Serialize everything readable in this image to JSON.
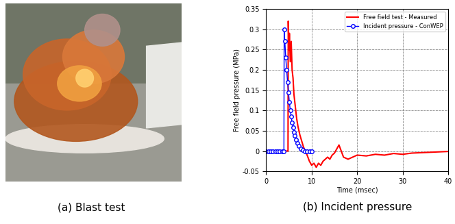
{
  "chart_data": {
    "type": "line",
    "xlabel": "Time (msec)",
    "ylabel": "Free field pressure (MPa)",
    "xlim": [
      0,
      40
    ],
    "xticks": [
      0,
      10,
      20,
      30,
      40
    ],
    "ylim": [
      -0.05,
      0.35
    ],
    "yticks": [
      -0.05,
      0,
      0.05,
      0.1,
      0.15,
      0.2,
      0.25,
      0.3,
      0.35
    ],
    "grid": true,
    "legend": "upper right",
    "series": [
      {
        "name": "Free field test - Measured",
        "color": "#ff0000",
        "marker": "none",
        "line_style": "solid",
        "x": [
          0,
          4.6,
          4.8,
          4.85,
          5.0,
          5.1,
          5.3,
          5.5,
          5.7,
          5.9,
          6.1,
          6.4,
          6.7,
          7.0,
          7.4,
          7.8,
          8.2,
          8.6,
          9.0,
          9.5,
          10.0,
          10.5,
          11.0,
          11.5,
          12.0,
          12.5,
          13.0,
          13.5,
          14.0,
          14.5,
          15.0,
          15.5,
          16.0,
          16.5,
          17.0,
          18.0,
          19.0,
          20.0,
          22.0,
          24.0,
          26.0,
          28.0,
          30.0,
          32.0,
          34.0,
          36.0,
          38.0,
          40.0
        ],
        "values": [
          0,
          0,
          0,
          0.32,
          0.25,
          0.29,
          0.22,
          0.27,
          0.2,
          0.18,
          0.14,
          0.11,
          0.08,
          0.06,
          0.04,
          0.025,
          0.01,
          0.0,
          -0.01,
          -0.025,
          -0.035,
          -0.03,
          -0.04,
          -0.03,
          -0.035,
          -0.025,
          -0.02,
          -0.015,
          -0.02,
          -0.01,
          -0.005,
          0.005,
          0.015,
          0.0,
          -0.015,
          -0.02,
          -0.015,
          -0.01,
          -0.012,
          -0.008,
          -0.01,
          -0.006,
          -0.008,
          -0.005,
          -0.004,
          -0.003,
          -0.002,
          -0.001
        ]
      },
      {
        "name": "Incident pressure - ConWEP",
        "color": "#0000ff",
        "marker": "o",
        "line_style": "solid",
        "x": [
          0,
          0.5,
          1.0,
          1.5,
          2.0,
          2.5,
          3.0,
          3.5,
          3.9,
          3.95,
          4.1,
          4.3,
          4.5,
          4.7,
          4.9,
          5.1,
          5.3,
          5.5,
          5.7,
          5.9,
          6.1,
          6.3,
          6.6,
          6.9,
          7.2,
          7.6,
          8.0,
          8.5,
          9.0,
          9.5,
          10.0
        ],
        "values": [
          0,
          0,
          0,
          0,
          0,
          0,
          0,
          0,
          0,
          0.3,
          0.27,
          0.23,
          0.2,
          0.17,
          0.145,
          0.12,
          0.1,
          0.085,
          0.07,
          0.058,
          0.047,
          0.038,
          0.028,
          0.019,
          0.012,
          0.006,
          0.002,
          0,
          0,
          0,
          0
        ]
      }
    ]
  },
  "captions": [
    "(a) Blast test",
    "(b) Incident pressure"
  ]
}
